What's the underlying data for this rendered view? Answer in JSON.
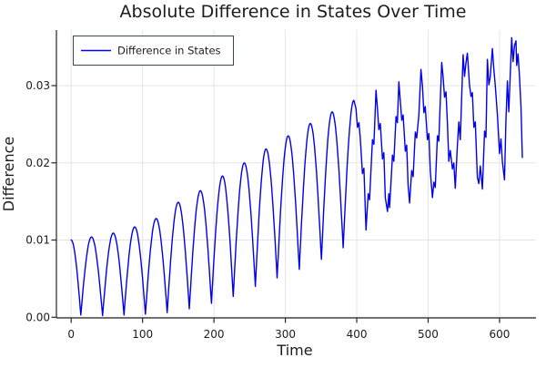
{
  "title": "Absolute Difference in States Over Time",
  "legend": {
    "label": "Difference in States"
  },
  "axes": {
    "x": {
      "label": "Time",
      "ticks": [
        0,
        100,
        200,
        300,
        400,
        500,
        600
      ]
    },
    "y": {
      "label": "Difference",
      "ticks": [
        0.0,
        0.01,
        0.02,
        0.03
      ],
      "tick_labels": [
        "0.00",
        "0.01",
        "0.02",
        "0.03"
      ]
    }
  },
  "colors": {
    "line": "#0000ee",
    "grid": "#e5e5e5",
    "spine": "#262626",
    "text": "#1c1c1c",
    "legend_border": "#37474f",
    "legend_bg": "#ffffff"
  },
  "chart_data": {
    "type": "line",
    "title": "Absolute Difference in States Over Time",
    "xlabel": "Time",
    "ylabel": "Difference",
    "xlim": [
      -20,
      655
    ],
    "ylim": [
      0,
      0.037
    ],
    "x_ticks": [
      0,
      100,
      200,
      300,
      400,
      500,
      600
    ],
    "y_ticks": [
      0.0,
      0.01,
      0.02,
      0.03
    ],
    "grid": true,
    "legend_position": "top-left",
    "series": [
      {
        "name": "Difference in States",
        "color": "#0000ee",
        "note": "Oscillation period ~30.5 time units; peak envelope grows 0.010 to 0.036; troughs near 0 before t=150 then rise; trace turns jagged after t~390; ends t~632 at 0.021",
        "smooth_anchors": [
          [
            0,
            0.01
          ],
          [
            13.5,
            0.0003
          ],
          [
            28.5,
            0.0104
          ],
          [
            44,
            0.0002
          ],
          [
            59,
            0.0109
          ],
          [
            74,
            0.0003
          ],
          [
            89,
            0.0117
          ],
          [
            104,
            0.0004
          ],
          [
            119,
            0.0128
          ],
          [
            134.5,
            0.0006
          ],
          [
            150,
            0.0149
          ],
          [
            165.5,
            0.0011
          ],
          [
            181,
            0.0164
          ],
          [
            196.5,
            0.0018
          ],
          [
            212,
            0.0183
          ],
          [
            227,
            0.0027
          ],
          [
            242.5,
            0.02
          ],
          [
            258,
            0.004
          ],
          [
            273,
            0.0218
          ],
          [
            288.5,
            0.0051
          ],
          [
            304,
            0.0235
          ],
          [
            319.5,
            0.0062
          ],
          [
            335,
            0.0251
          ],
          [
            350.5,
            0.0075
          ],
          [
            365.5,
            0.0266
          ],
          [
            381,
            0.009
          ],
          [
            396,
            0.0281
          ]
        ],
        "detail_points": [
          [
            399,
            0.027
          ],
          [
            401,
            0.0246
          ],
          [
            403,
            0.0252
          ],
          [
            405,
            0.0232
          ],
          [
            408,
            0.0186
          ],
          [
            410,
            0.0193
          ],
          [
            413,
            0.0113
          ],
          [
            416,
            0.016
          ],
          [
            418,
            0.0152
          ],
          [
            422,
            0.023
          ],
          [
            424,
            0.0224
          ],
          [
            427,
            0.0294
          ],
          [
            429,
            0.027
          ],
          [
            431,
            0.0243
          ],
          [
            433,
            0.0251
          ],
          [
            436,
            0.0205
          ],
          [
            438,
            0.0213
          ],
          [
            440,
            0.0155
          ],
          [
            443,
            0.0137
          ],
          [
            445,
            0.016
          ],
          [
            446,
            0.0142
          ],
          [
            450,
            0.021
          ],
          [
            452,
            0.0202
          ],
          [
            455,
            0.026
          ],
          [
            457,
            0.0252
          ],
          [
            459,
            0.0305
          ],
          [
            461,
            0.028
          ],
          [
            463,
            0.0255
          ],
          [
            465,
            0.0262
          ],
          [
            468,
            0.0215
          ],
          [
            470,
            0.0223
          ],
          [
            472,
            0.017
          ],
          [
            474,
            0.0148
          ],
          [
            477,
            0.019
          ],
          [
            479,
            0.0182
          ],
          [
            482,
            0.024
          ],
          [
            484,
            0.0232
          ],
          [
            487,
            0.0262
          ],
          [
            490,
            0.0321
          ],
          [
            492,
            0.03
          ],
          [
            494,
            0.0265
          ],
          [
            496,
            0.0273
          ],
          [
            499,
            0.023
          ],
          [
            501,
            0.0238
          ],
          [
            503,
            0.019
          ],
          [
            506,
            0.0155
          ],
          [
            508,
            0.0175
          ],
          [
            510,
            0.0168
          ],
          [
            513,
            0.0235
          ],
          [
            515,
            0.0228
          ],
          [
            519,
            0.033
          ],
          [
            521,
            0.031
          ],
          [
            523,
            0.0285
          ],
          [
            525,
            0.0292
          ],
          [
            527,
            0.025
          ],
          [
            529,
            0.0202
          ],
          [
            531,
            0.0216
          ],
          [
            534,
            0.0192
          ],
          [
            536,
            0.02
          ],
          [
            538,
            0.0167
          ],
          [
            541,
            0.0222
          ],
          [
            543,
            0.0253
          ],
          [
            545,
            0.023
          ],
          [
            549,
            0.034
          ],
          [
            551,
            0.0312
          ],
          [
            553,
            0.033
          ],
          [
            555,
            0.0342
          ],
          [
            558,
            0.03
          ],
          [
            560,
            0.0286
          ],
          [
            562,
            0.0291
          ],
          [
            564,
            0.0246
          ],
          [
            566,
            0.0253
          ],
          [
            569,
            0.0181
          ],
          [
            571,
            0.0173
          ],
          [
            573,
            0.0196
          ],
          [
            576,
            0.0166
          ],
          [
            579,
            0.0241
          ],
          [
            581,
            0.0233
          ],
          [
            583,
            0.0334
          ],
          [
            585,
            0.0301
          ],
          [
            587,
            0.0311
          ],
          [
            590,
            0.0348
          ],
          [
            592,
            0.0321
          ],
          [
            594,
            0.0301
          ],
          [
            597,
            0.0262
          ],
          [
            600,
            0.0212
          ],
          [
            602,
            0.0231
          ],
          [
            604,
            0.0201
          ],
          [
            607,
            0.0178
          ],
          [
            609,
            0.0256
          ],
          [
            611,
            0.0306
          ],
          [
            613,
            0.0266
          ],
          [
            617,
            0.0362
          ],
          [
            619,
            0.0331
          ],
          [
            621,
            0.0352
          ],
          [
            623,
            0.0358
          ],
          [
            624,
            0.0326
          ],
          [
            626,
            0.0341
          ],
          [
            628,
            0.0311
          ],
          [
            630,
            0.0273
          ],
          [
            632,
            0.0207
          ]
        ]
      }
    ]
  }
}
